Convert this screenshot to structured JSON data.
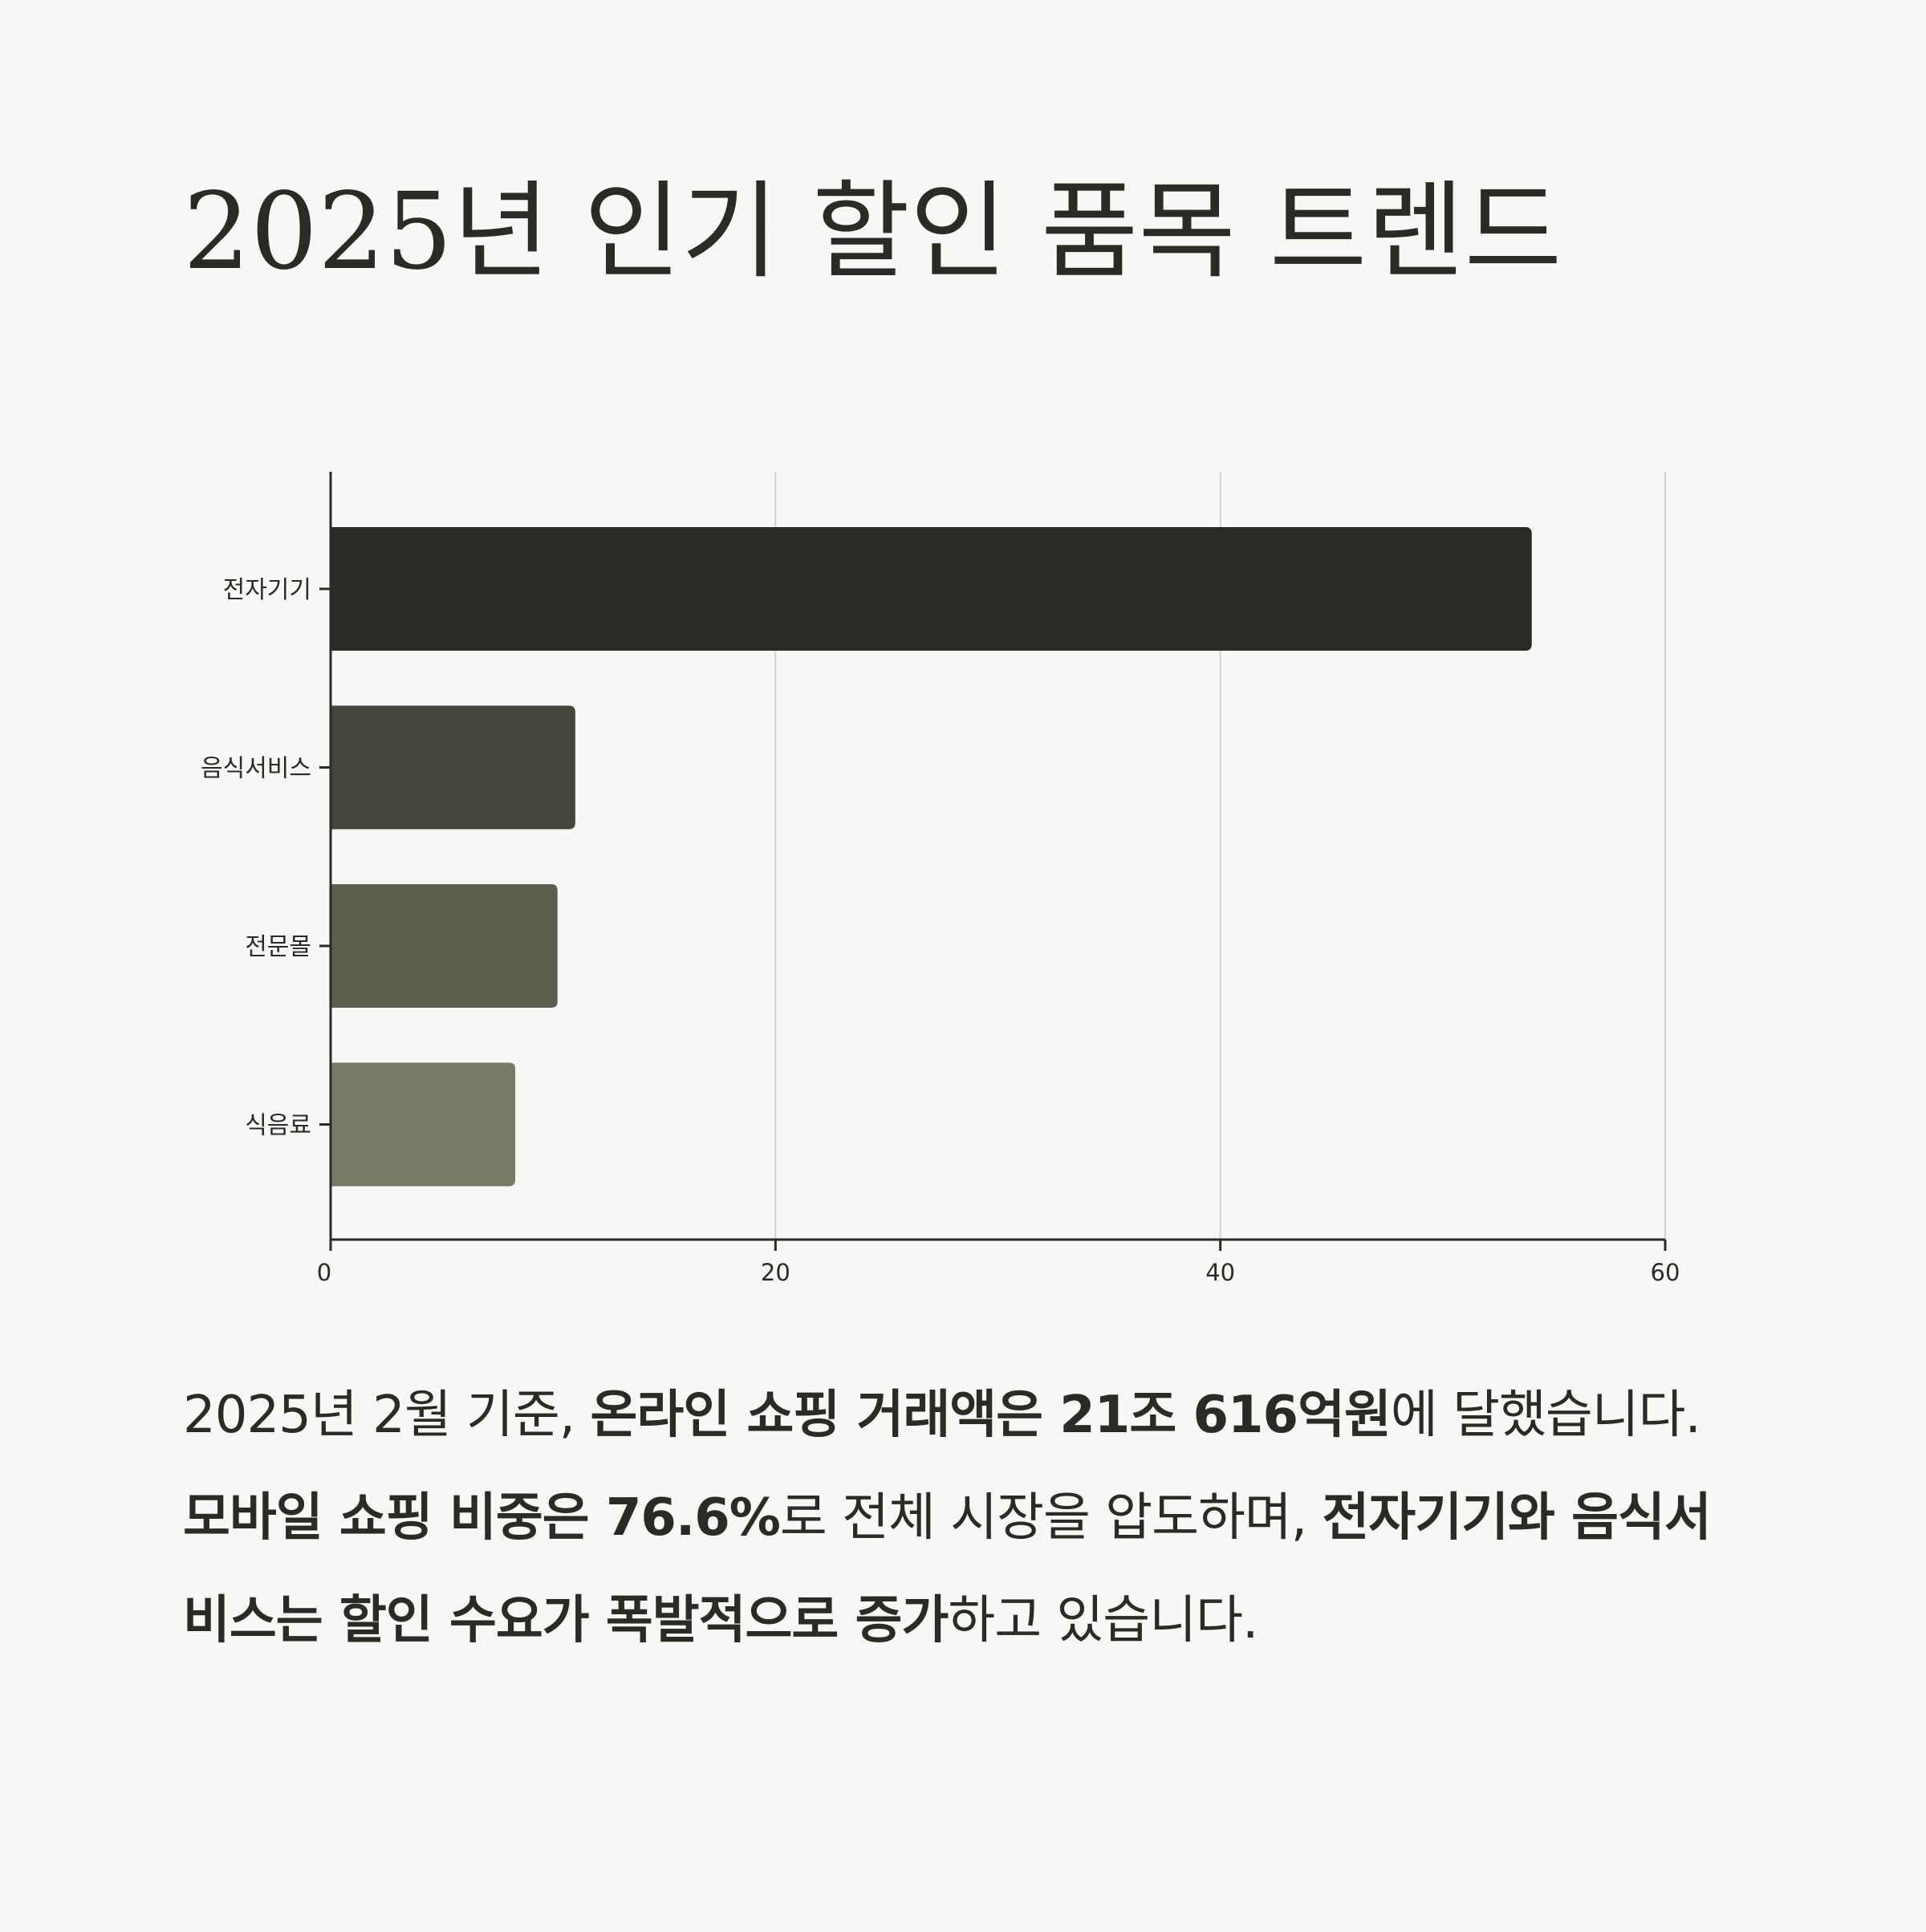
{
  "title": "2025년 인기 할인 품목 트렌드",
  "chart_data": {
    "type": "bar",
    "orientation": "horizontal",
    "categories": [
      "전자기기",
      "음식서비스",
      "전문몰",
      "식음료"
    ],
    "values": [
      54,
      11,
      10.2,
      8.3
    ],
    "colors": [
      "#2b2a26",
      "#45453a",
      "#5d5e4e",
      "#787a65"
    ],
    "xlim": [
      0,
      60
    ],
    "xticks": [
      "0",
      "20",
      "40",
      "60"
    ],
    "grid": true,
    "title": "",
    "xlabel": "",
    "ylabel": ""
  },
  "summary": [
    {
      "text": "2025년 2월 기준, ",
      "bold": false
    },
    {
      "text": "온라인 쇼핑 거래액은 21조 616억원",
      "bold": true
    },
    {
      "text": "에 달했습니다. ",
      "bold": false
    },
    {
      "text": "모바일 쇼핑 비중은 76.6%",
      "bold": true
    },
    {
      "text": "로 전체 시장을 압도하며, ",
      "bold": false
    },
    {
      "text": "전자기기와 음식서비스는 할인 수요가 폭발적으로 증가",
      "bold": true
    },
    {
      "text": "하고 있습니다.",
      "bold": false
    }
  ]
}
